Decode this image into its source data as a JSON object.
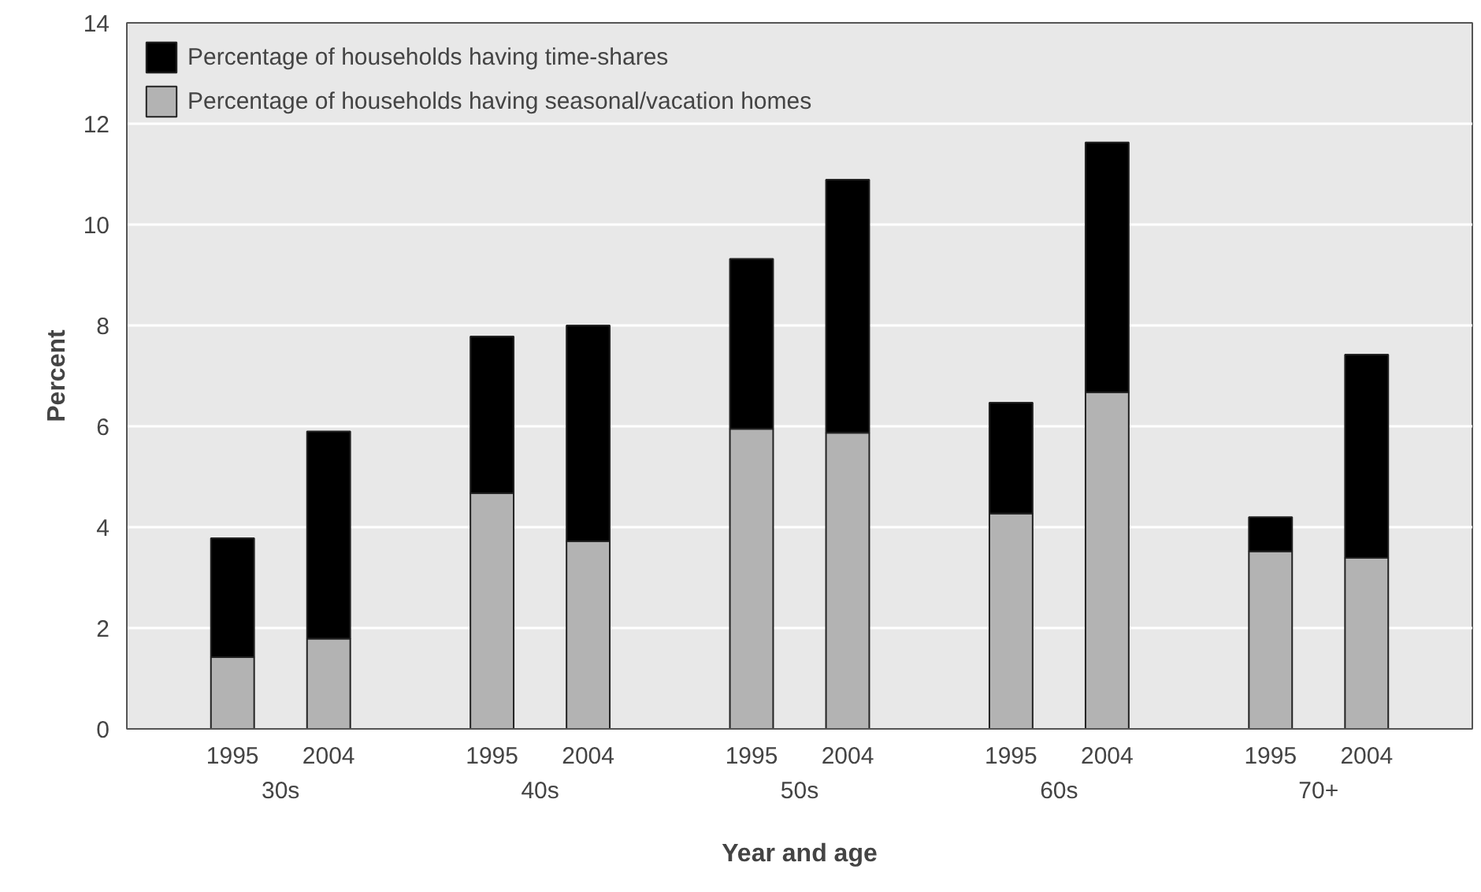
{
  "chart_data": {
    "type": "bar",
    "stacked": true,
    "xlabel": "Year and age",
    "ylabel": "Percent",
    "categories": [
      "1995",
      "2004",
      "1995",
      "2004",
      "1995",
      "2004",
      "1995",
      "2004",
      "1995",
      "2004"
    ],
    "annotations": [
      "30s",
      "40s",
      "50s",
      "60s",
      "70+"
    ],
    "series": [
      {
        "name": "Percentage of households having seasonal/vacation homes",
        "color": "#b3b3b3",
        "values": [
          1.42,
          1.79,
          4.67,
          3.72,
          5.95,
          5.87,
          4.27,
          6.67,
          3.52,
          3.39
        ]
      },
      {
        "name": "Percentage of households having time-shares",
        "color": "#000000",
        "values": [
          2.36,
          4.11,
          3.11,
          4.28,
          3.37,
          5.02,
          2.2,
          4.96,
          0.68,
          4.03
        ]
      }
    ],
    "ylim": [
      0,
      14
    ],
    "yticks": [
      0,
      2,
      4,
      6,
      8,
      10,
      12,
      14
    ],
    "grid": "y",
    "legend": "top left"
  }
}
